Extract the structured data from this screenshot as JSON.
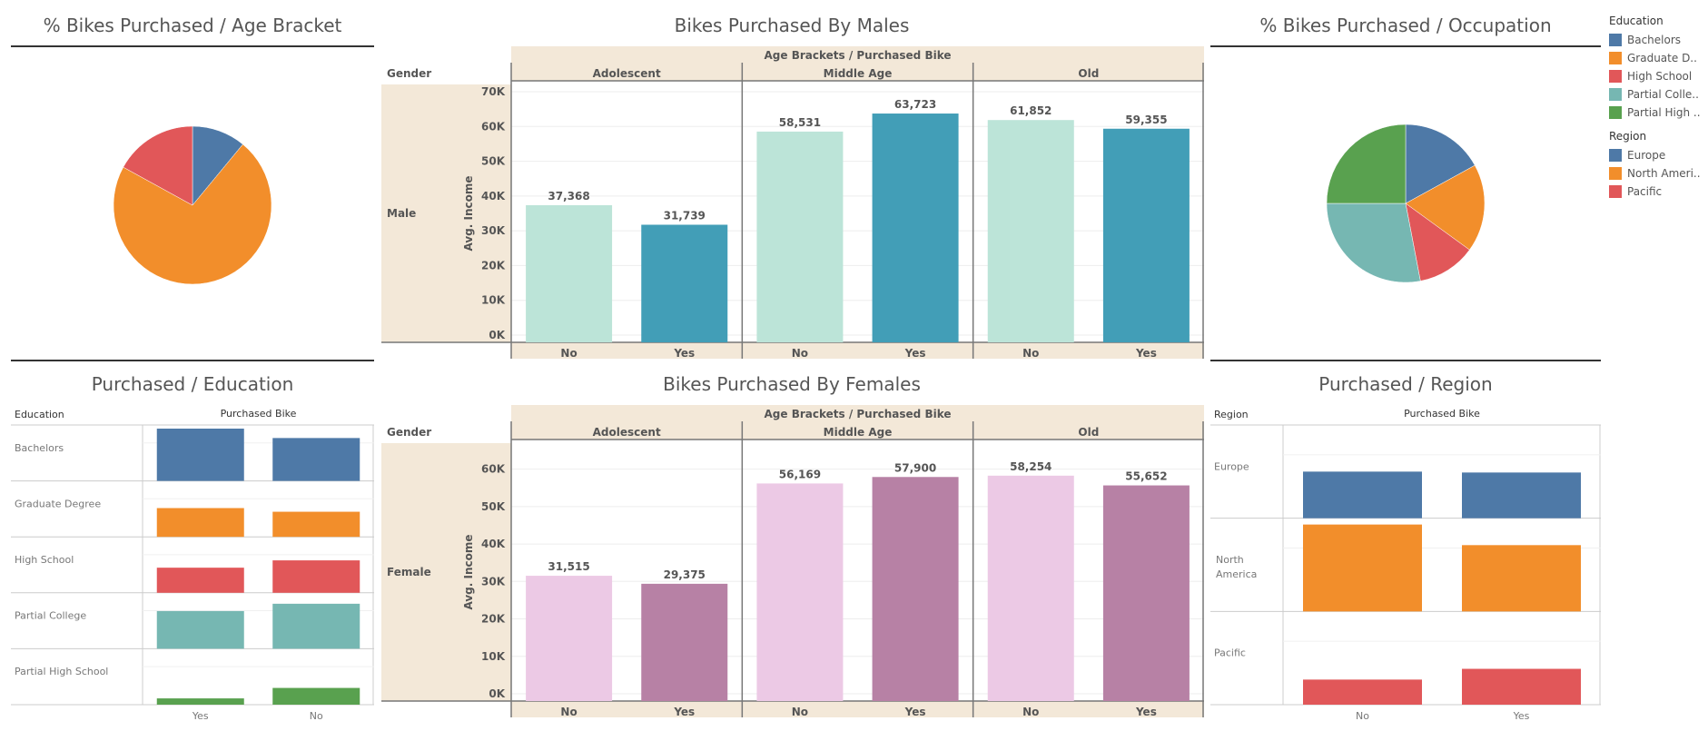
{
  "titles": {
    "age_pie": "% Bikes Purchased / Age Bracket",
    "males": "Bikes Purchased By Males",
    "occupation_pie": "% Bikes Purchased / Occupation",
    "education": "Purchased / Education",
    "females": "Bikes Purchased By Females",
    "region": "Purchased  / Region"
  },
  "legend": {
    "education_title": "Education",
    "education_items": [
      {
        "label": "Bachelors",
        "color": "#4e79a7"
      },
      {
        "label": "Graduate D..",
        "color": "#f28e2b"
      },
      {
        "label": "High School",
        "color": "#e15759"
      },
      {
        "label": "Partial Colle..",
        "color": "#76b7b2"
      },
      {
        "label": "Partial High ..",
        "color": "#59a14f"
      }
    ],
    "region_title": "Region",
    "region_items": [
      {
        "label": "Europe",
        "color": "#4e79a7"
      },
      {
        "label": "North Ameri..",
        "color": "#f28e2b"
      },
      {
        "label": "Pacific",
        "color": "#e15759"
      }
    ]
  },
  "chart_data": [
    {
      "id": "age_pie",
      "type": "pie",
      "title": "% Bikes Purchased / Age Bracket",
      "slices": [
        {
          "value": 11,
          "color": "#4e79a7"
        },
        {
          "value": 72,
          "color": "#f28e2b"
        },
        {
          "value": 17,
          "color": "#e15759"
        }
      ]
    },
    {
      "id": "males",
      "type": "bar",
      "title": "Bikes Purchased By Males",
      "header": "Age Brackets  /  Purchased Bike",
      "row_header": "Gender",
      "row_label": "Male",
      "ylabel": "Avg. Income",
      "ylim": [
        0,
        70000
      ],
      "yticks": [
        {
          "v": 0,
          "l": "0K"
        },
        {
          "v": 10000,
          "l": "10K"
        },
        {
          "v": 20000,
          "l": "20K"
        },
        {
          "v": 30000,
          "l": "30K"
        },
        {
          "v": 40000,
          "l": "40K"
        },
        {
          "v": 50000,
          "l": "50K"
        },
        {
          "v": 60000,
          "l": "60K"
        },
        {
          "v": 70000,
          "l": "70K"
        }
      ],
      "groups": [
        {
          "name": "Adolescent",
          "bars": [
            {
              "cat": "No",
              "value": 37368,
              "label": "37,368"
            },
            {
              "cat": "Yes",
              "value": 31739,
              "label": "31,739"
            }
          ]
        },
        {
          "name": "Middle Age",
          "bars": [
            {
              "cat": "No",
              "value": 58531,
              "label": "58,531"
            },
            {
              "cat": "Yes",
              "value": 63723,
              "label": "63,723"
            }
          ]
        },
        {
          "name": "Old",
          "bars": [
            {
              "cat": "No",
              "value": 61852,
              "label": "61,852"
            },
            {
              "cat": "Yes",
              "value": 59355,
              "label": "59,355"
            }
          ]
        }
      ],
      "colors": {
        "No": "#bce4d8",
        "Yes": "#429eb7"
      }
    },
    {
      "id": "occupation_pie",
      "type": "pie",
      "title": "% Bikes Purchased / Occupation",
      "slices": [
        {
          "value": 17,
          "color": "#4e79a7"
        },
        {
          "value": 18,
          "color": "#f28e2b"
        },
        {
          "value": 12,
          "color": "#e15759"
        },
        {
          "value": 28,
          "color": "#76b7b2"
        },
        {
          "value": 25,
          "color": "#59a14f"
        }
      ]
    },
    {
      "id": "education",
      "type": "bar",
      "title": "Purchased / Education",
      "row_header": "Education",
      "col_header": "Purchased Bike",
      "categories": [
        "Yes",
        "No"
      ],
      "rows": [
        {
          "name": "Bachelors",
          "color": "#4e79a7",
          "values": [
            1.0,
            0.82
          ]
        },
        {
          "name": "Graduate Degree",
          "color": "#f28e2b",
          "values": [
            0.55,
            0.48
          ]
        },
        {
          "name": "High School",
          "color": "#e15759",
          "values": [
            0.48,
            0.62
          ]
        },
        {
          "name": "Partial College",
          "color": "#76b7b2",
          "values": [
            0.72,
            0.86
          ]
        },
        {
          "name": "Partial High School",
          "color": "#59a14f",
          "values": [
            0.12,
            0.32
          ]
        }
      ]
    },
    {
      "id": "females",
      "type": "bar",
      "title": "Bikes Purchased By Females",
      "header": "Age Brackets  /  Purchased Bike",
      "row_header": "Gender",
      "row_label": "Female",
      "ylabel": "Avg. Income",
      "ylim": [
        0,
        65000
      ],
      "yticks": [
        {
          "v": 0,
          "l": "0K"
        },
        {
          "v": 10000,
          "l": "10K"
        },
        {
          "v": 20000,
          "l": "20K"
        },
        {
          "v": 30000,
          "l": "30K"
        },
        {
          "v": 40000,
          "l": "40K"
        },
        {
          "v": 50000,
          "l": "50K"
        },
        {
          "v": 60000,
          "l": "60K"
        }
      ],
      "groups": [
        {
          "name": "Adolescent",
          "bars": [
            {
              "cat": "No",
              "value": 31515,
              "label": "31,515"
            },
            {
              "cat": "Yes",
              "value": 29375,
              "label": "29,375"
            }
          ]
        },
        {
          "name": "Middle Age",
          "bars": [
            {
              "cat": "No",
              "value": 56169,
              "label": "56,169"
            },
            {
              "cat": "Yes",
              "value": 57900,
              "label": "57,900"
            }
          ]
        },
        {
          "name": "Old",
          "bars": [
            {
              "cat": "No",
              "value": 58254,
              "label": "58,254"
            },
            {
              "cat": "Yes",
              "value": 55652,
              "label": "55,652"
            }
          ]
        }
      ],
      "colors": {
        "No": "#ecc9e5",
        "Yes": "#b781a5"
      }
    },
    {
      "id": "region",
      "type": "bar",
      "title": "Purchased  / Region",
      "row_header": "Region",
      "col_header": "Purchased Bike",
      "categories": [
        "No",
        "Yes"
      ],
      "rows": [
        {
          "name": "Europe",
          "color": "#4e79a7",
          "values": [
            0.52,
            0.51
          ]
        },
        {
          "name": "North America",
          "color": "#f28e2b",
          "values": [
            0.97,
            0.74
          ]
        },
        {
          "name": "Pacific",
          "color": "#e15759",
          "values": [
            0.28,
            0.4
          ]
        }
      ]
    }
  ]
}
